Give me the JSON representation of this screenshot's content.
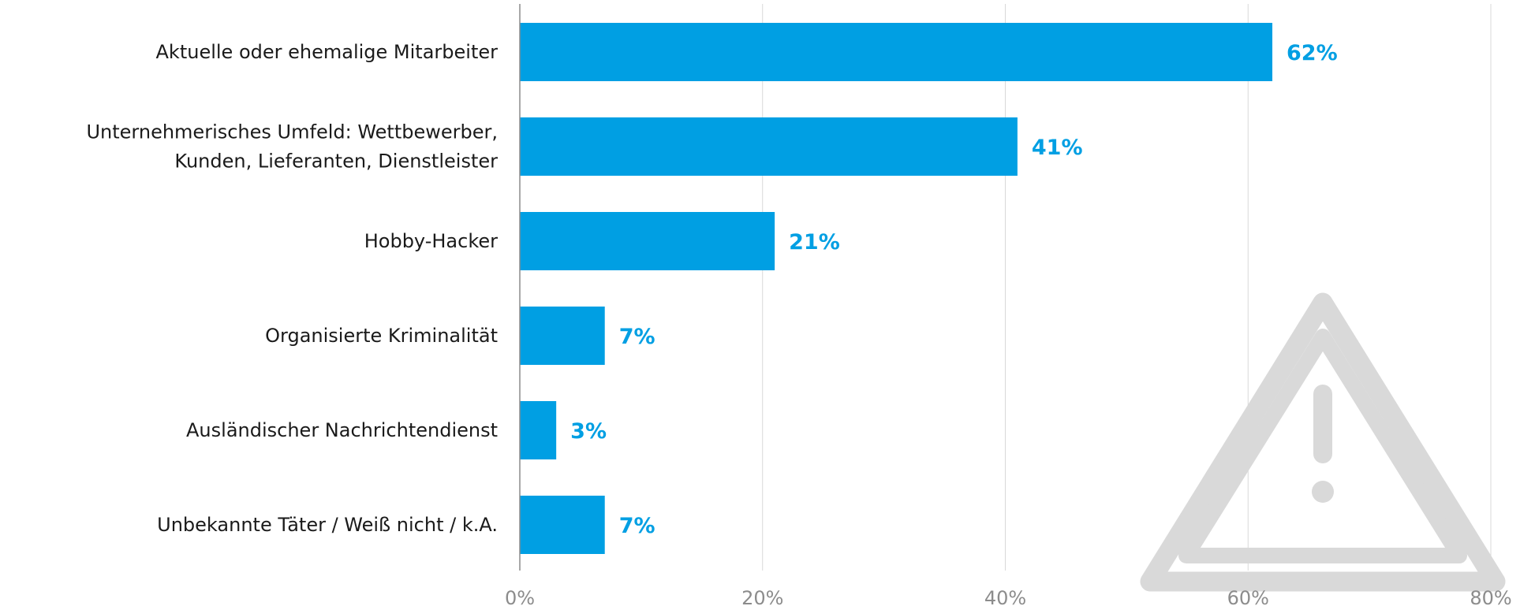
{
  "chart_data": {
    "type": "bar",
    "orientation": "horizontal",
    "categories": [
      [
        "Aktuelle oder ehemalige Mitarbeiter"
      ],
      [
        "Unternehmerisches Umfeld: Wettbewerber,",
        "Kunden, Lieferanten, Dienstleister"
      ],
      [
        "Hobby-Hacker"
      ],
      [
        "Organisierte Kriminalität"
      ],
      [
        "Ausländischer Nachrichtendienst"
      ],
      [
        "Unbekannte Täter / Weiß nicht / k.A."
      ]
    ],
    "values": [
      62,
      41,
      21,
      7,
      3,
      7
    ],
    "value_labels": [
      "62%",
      "41%",
      "21%",
      "7%",
      "3%",
      "7%"
    ],
    "xlim": [
      0,
      80
    ],
    "xticks": [
      0,
      20,
      40,
      60,
      80
    ],
    "xtick_labels": [
      "0%",
      "20%",
      "40%",
      "60%",
      "80%"
    ],
    "grid": true,
    "title": "",
    "xlabel": "",
    "ylabel": ""
  },
  "colors": {
    "bar": "#009FE3",
    "value_label": "#009FE3",
    "gridline": "#d9d9d9",
    "axis": "#8c8c8c",
    "warning_watermark": "#d9d9d9"
  },
  "icons": {
    "watermark": "warning-triangle-icon"
  }
}
